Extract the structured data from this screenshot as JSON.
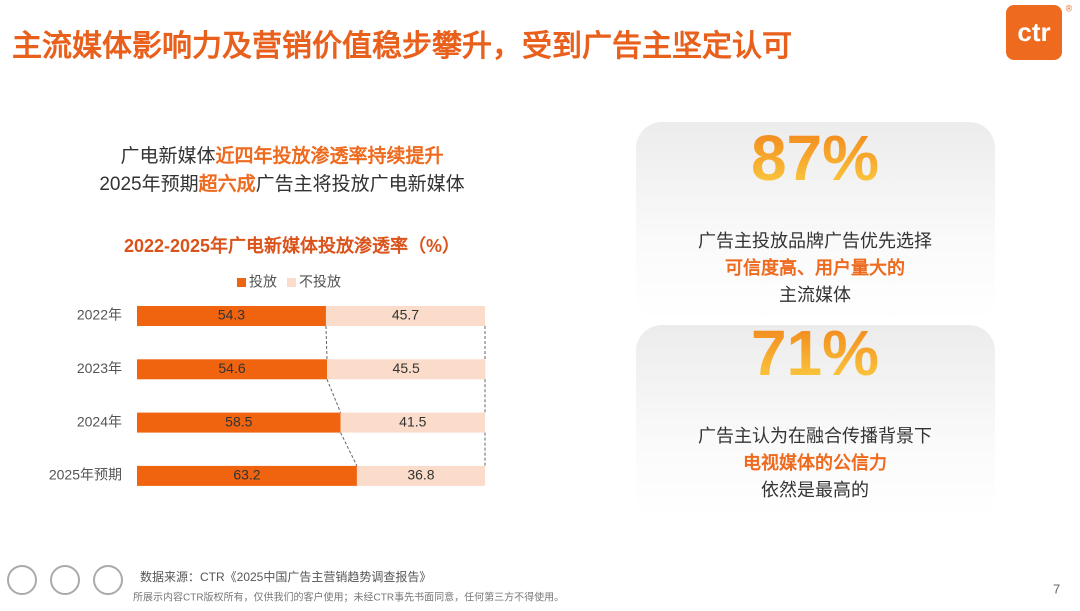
{
  "title": "主流媒体影响力及营销价值稳步攀升，受到广告主坚定认可",
  "logo": {
    "text": "ctr",
    "mark": "®"
  },
  "intro": [
    {
      "segments": [
        {
          "text": "广电新媒体"
        },
        {
          "text": "近四年投放渗透率持续提升",
          "emphasis": true
        }
      ]
    },
    {
      "segments": [
        {
          "text": "2025年预期"
        },
        {
          "text": "超六成",
          "emphasis": true
        },
        {
          "text": "广告主将投放广电新媒体"
        }
      ]
    }
  ],
  "chart_data": {
    "type": "bar",
    "orientation": "horizontal",
    "stacked": true,
    "title": "2022-2025年广电新媒体投放渗透率（%）",
    "categories": [
      "2022年",
      "2023年",
      "2024年",
      "2025年预期"
    ],
    "series": [
      {
        "name": "投放",
        "color": "#f0640f",
        "values": [
          54.3,
          54.6,
          58.5,
          63.2
        ]
      },
      {
        "name": "不投放",
        "color": "#fbdccb",
        "values": [
          45.7,
          45.5,
          41.5,
          36.8
        ]
      }
    ],
    "xlim": [
      0,
      100
    ],
    "legend": "top"
  },
  "cards": [
    {
      "figure": "87%",
      "lines": [
        {
          "segments": [
            {
              "text": "广告主投放品牌广告优先选择"
            }
          ]
        },
        {
          "segments": [
            {
              "text": "可信度高、用户量大的",
              "emphasis": true
            }
          ]
        },
        {
          "segments": [
            {
              "text": "主流媒体"
            }
          ]
        }
      ]
    },
    {
      "figure": "71%",
      "lines": [
        {
          "segments": [
            {
              "text": "广告主认为在融合传播背景下"
            }
          ]
        },
        {
          "segments": [
            {
              "text": "电视媒体的公信力",
              "emphasis": true
            }
          ]
        },
        {
          "segments": [
            {
              "text": "依然是最高的"
            }
          ]
        }
      ]
    }
  ],
  "footer": {
    "source": "数据来源：CTR《2025中国广告主营销趋势调查报告》",
    "copyright": "所展示内容CTR版权所有，仅供我们的客户使用；未经CTR事先书面同意，任何第三方不得使用。",
    "page": 7
  }
}
